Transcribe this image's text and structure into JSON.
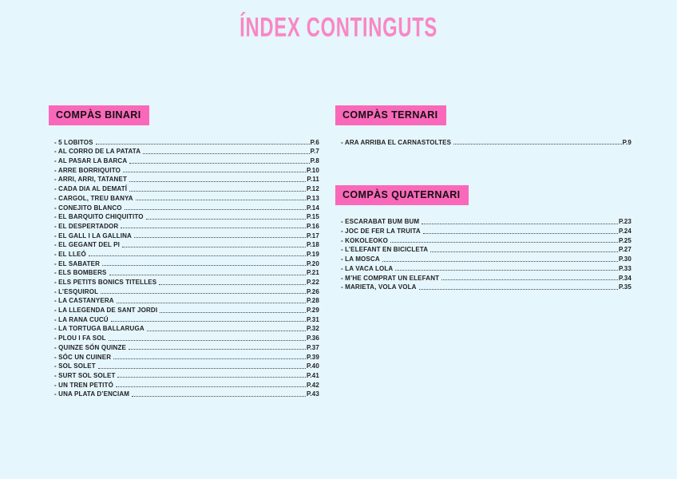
{
  "page": {
    "title": "ÍNDEX CONTINGUTS"
  },
  "colors": {
    "background": "#e5f6fc",
    "header_bg": "#fa68ba",
    "title_color": "#f887c5",
    "text": "#222222",
    "header_text": "#111111",
    "leader_color": "#444444"
  },
  "list": {
    "bullet": "-"
  },
  "sections": [
    {
      "id": "compas-binari",
      "label": "COMPÀS BINARI",
      "items": [
        {
          "title": "5 LOBITOS",
          "page": "P.6"
        },
        {
          "title": "AL CORRO DE LA PATATA",
          "page": "P.7"
        },
        {
          "title": "AL PASAR LA BARCA",
          "page": "P.8"
        },
        {
          "title": "ARRE BORRIQUITO",
          "page": "P.10"
        },
        {
          "title": "ARRI, ARRI, TATANET",
          "page": "P.11"
        },
        {
          "title": "CADA DIA AL DEMATÍ",
          "page": "P.12"
        },
        {
          "title": "CARGOL, TREU BANYA",
          "page": "P.13"
        },
        {
          "title": "CONEJITO BLANCO",
          "page": "P.14"
        },
        {
          "title": "EL BARQUITO CHIQUITITO",
          "page": "P.15"
        },
        {
          "title": "EL DESPERTADOR",
          "page": "P.16"
        },
        {
          "title": "EL GALL I LA GALLINA",
          "page": "P.17"
        },
        {
          "title": "EL GEGANT DEL PI",
          "page": "P.18"
        },
        {
          "title": "EL LLEÓ",
          "page": "P.19"
        },
        {
          "title": "EL SABATER",
          "page": "P.20"
        },
        {
          "title": "ELS BOMBERS",
          "page": "P.21"
        },
        {
          "title": "ELS PETITS BONICS TITELLES",
          "page": "P.22"
        },
        {
          "title": "L’ESQUIROL",
          "page": "P.26"
        },
        {
          "title": "LA CASTANYERA",
          "page": "P.28"
        },
        {
          "title": "LA LLEGENDA DE SANT JORDI",
          "page": "P.29"
        },
        {
          "title": "LA RANA CUCÚ",
          "page": "P.31"
        },
        {
          "title": "LA TORTUGA BALLARUGA",
          "page": "P.32"
        },
        {
          "title": "PLOU I FA SOL",
          "page": "P.36"
        },
        {
          "title": "QUINZE SÓN QUINZE",
          "page": "P.37"
        },
        {
          "title": "SÓC UN CUINER",
          "page": "P.39"
        },
        {
          "title": "SOL SOLET",
          "page": "P.40"
        },
        {
          "title": "SURT SOL SOLET",
          "page": "P.41"
        },
        {
          "title": "UN TREN PETITÓ",
          "page": "P.42"
        },
        {
          "title": "UNA PLATA D’ENCIAM",
          "page": "P.43"
        }
      ]
    },
    {
      "id": "compas-ternari",
      "label": "COMPÀS TERNARI",
      "items": [
        {
          "title": "ARA ARRIBA EL CARNASTOLTES",
          "page": "P.9"
        }
      ]
    },
    {
      "id": "compas-quaternari",
      "label": "COMPÀS QUATERNARI",
      "items": [
        {
          "title": "ESCARABAT BUM BUM",
          "page": "P.23"
        },
        {
          "title": "JOC DE FER LA TRUITA",
          "page": "P.24"
        },
        {
          "title": "KOKOLEOKO",
          "page": "P.25"
        },
        {
          "title": "L’ELEFANT EN BICICLETA",
          "page": "P.27"
        },
        {
          "title": "LA MOSCA",
          "page": "P.30"
        },
        {
          "title": "LA VACA LOLA",
          "page": "P.33"
        },
        {
          "title": "M’HE COMPRAT UN ELEFANT",
          "page": "P.34"
        },
        {
          "title": "MARIETA, VOLA VOLA",
          "page": "P.35"
        }
      ]
    }
  ]
}
